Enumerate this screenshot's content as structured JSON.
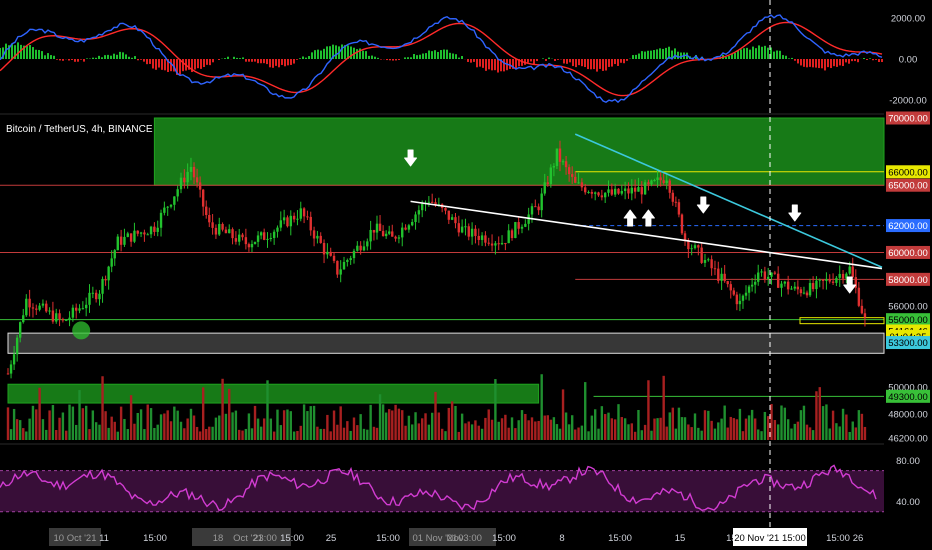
{
  "symbol_title": "Bitcoin / TetherUS, 4h, BINANCE",
  "colors": {
    "bg": "#000000",
    "up": "#26a69a",
    "up_bright": "#22c32e",
    "down": "#e03030",
    "zone_green": "#1fa31f",
    "zone_gray": "#9e9e9e",
    "rsi": "#d23cd2",
    "macd": "#2f64ff",
    "signal": "#ff2a2a",
    "trend_white": "#ffffff",
    "trend_cyan": "#3cc8dc",
    "level_yellow": "#e8e800",
    "level_red": "#c23b3b",
    "level_blue": "#2a6cff",
    "level_green": "#38c038",
    "crosshair": "#ffffff"
  },
  "price_axis": {
    "labels": [
      {
        "text": "70000.00",
        "value": 70000,
        "style": "red"
      },
      {
        "text": "66000.00",
        "value": 66000,
        "style": "yellow"
      },
      {
        "text": "65000.00",
        "value": 65000,
        "style": "red"
      },
      {
        "text": "62000.00",
        "value": 62000,
        "style": "blue"
      },
      {
        "text": "60000.00",
        "value": 60000,
        "style": "red"
      },
      {
        "text": "58000.00",
        "value": 58000,
        "style": "red"
      },
      {
        "text": "56000.00",
        "value": 56000,
        "style": "plain"
      },
      {
        "text": "55000.00",
        "value": 55000,
        "style": "green"
      },
      {
        "text": "54161.46",
        "value": 54161.46,
        "style": "current"
      },
      {
        "text": "01:04:35",
        "value": 53750,
        "style": "timer"
      },
      {
        "text": "53300.00",
        "value": 53300,
        "style": "cyan"
      },
      {
        "text": "50000.00",
        "value": 50000,
        "style": "plain"
      },
      {
        "text": "49300.00",
        "value": 49300,
        "style": "green"
      },
      {
        "text": "48000.00",
        "value": 48000,
        "style": "plain"
      },
      {
        "text": "46200.00",
        "value": 46200,
        "style": "plain"
      }
    ]
  },
  "macd_axis": {
    "labels": [
      "2000.00",
      "0.00",
      "-2000.00"
    ]
  },
  "rsi_axis": {
    "labels": [
      "80.00",
      "40.00"
    ]
  },
  "time_axis": {
    "labels": [
      "10 Oct '21",
      "11",
      "15:00",
      "18",
      "Oct '21",
      "23:00",
      "15:00",
      "25",
      "15:00",
      "01 Nov '21",
      "Nov",
      "03:00",
      "15:00",
      "8",
      "15:00",
      "15",
      "15:00",
      "22",
      "15:00",
      "26"
    ],
    "highlight": "20 Nov '21  15:00"
  },
  "chart_data": {
    "type": "candlestick",
    "title": "Bitcoin / TetherUS, 4h, BINANCE",
    "symbol": "BTC/USDT",
    "timeframe": "4h",
    "exchange": "BINANCE",
    "ylim": [
      46200,
      70000
    ],
    "x_range": [
      "10 Oct '21",
      "26 Nov '21"
    ],
    "current_price": 54161.46,
    "countdown": "01:04:35",
    "close_path": [
      {
        "x": "10 Oct '21",
        "close": 51000
      },
      {
        "x": "11 Oct '21",
        "close": 56500
      },
      {
        "x": "13 Oct '21",
        "close": 54800
      },
      {
        "x": "15 Oct '21",
        "close": 57200
      },
      {
        "x": "16 Oct '21",
        "close": 60800
      },
      {
        "x": "18 Oct '21",
        "close": 61900
      },
      {
        "x": "20 Oct '21",
        "close": 66400
      },
      {
        "x": "21 Oct '21",
        "close": 62000
      },
      {
        "x": "23 Oct '21",
        "close": 60700
      },
      {
        "x": "24 Oct '21",
        "close": 61200
      },
      {
        "x": "26 Oct '21",
        "close": 63000
      },
      {
        "x": "28 Oct '21",
        "close": 58600
      },
      {
        "x": "30 Oct '21",
        "close": 61800
      },
      {
        "x": "31 Oct '21",
        "close": 61000
      },
      {
        "x": "02 Nov '21",
        "close": 64000
      },
      {
        "x": "04 Nov '21",
        "close": 61500
      },
      {
        "x": "06 Nov '21",
        "close": 60800
      },
      {
        "x": "08 Nov '21",
        "close": 63500
      },
      {
        "x": "09 Nov '21",
        "close": 67300
      },
      {
        "x": "10 Nov '21",
        "close": 65000
      },
      {
        "x": "12 Nov '21",
        "close": 64300
      },
      {
        "x": "14 Nov '21",
        "close": 64800
      },
      {
        "x": "15 Nov '21",
        "close": 65700
      },
      {
        "x": "16 Nov '21",
        "close": 61000
      },
      {
        "x": "18 Nov '21",
        "close": 58000
      },
      {
        "x": "19 Nov '21",
        "close": 56200
      },
      {
        "x": "20 Nov '21",
        "close": 58600
      },
      {
        "x": "22 Nov '21",
        "close": 57200
      },
      {
        "x": "23 Nov '21",
        "close": 57300
      },
      {
        "x": "25 Nov '21",
        "close": 58800
      },
      {
        "x": "26 Nov '21",
        "close": 54161.46
      }
    ],
    "levels": [
      {
        "price": 66000,
        "color": "yellow",
        "from": "10 Nov '21",
        "to": "26 Nov '21"
      },
      {
        "price": 65000,
        "color": "red",
        "from": "10 Oct '21",
        "to": "26 Nov '21"
      },
      {
        "price": 62000,
        "color": "blue",
        "from": "10 Nov '21",
        "to": "26 Nov '21"
      },
      {
        "price": 60000,
        "color": "red",
        "from": "10 Oct '21",
        "to": "26 Nov '21"
      },
      {
        "price": 58000,
        "color": "red",
        "from": "10 Nov '21",
        "to": "26 Nov '21"
      },
      {
        "price": 55000,
        "color": "green",
        "from": "10 Oct '21",
        "to": "26 Nov '21"
      },
      {
        "price": 49300,
        "color": "green",
        "from": "11 Nov '21",
        "to": "26 Nov '21"
      }
    ],
    "zones": [
      {
        "type": "resistance",
        "color": "green",
        "from_price": 65000,
        "to_price": 70000,
        "from": "18 Oct '21",
        "to": "26 Nov '21"
      },
      {
        "type": "support",
        "color": "gray",
        "from_price": 52500,
        "to_price": 54000,
        "from": "10 Oct '21",
        "to": "26 Nov '21"
      },
      {
        "type": "support",
        "color": "green",
        "from_price": 48800,
        "to_price": 50200,
        "from": "10 Oct '21",
        "to": "08 Nov '21"
      }
    ],
    "trendlines": [
      {
        "color": "white",
        "from": {
          "x": "01 Nov '21",
          "price": 63800
        },
        "to": {
          "x": "26 Nov '21",
          "price": 58800
        }
      },
      {
        "color": "cyan",
        "from": {
          "x": "10 Nov '21",
          "price": 68800
        },
        "to": {
          "x": "26 Nov '21",
          "price": 58900
        }
      }
    ],
    "annotations": [
      {
        "type": "arrow-down",
        "x": "01 Nov '21"
      },
      {
        "type": "arrow-up",
        "x": "13 Nov '21"
      },
      {
        "type": "arrow-up",
        "x": "14 Nov '21"
      },
      {
        "type": "arrow-down",
        "x": "17 Nov '21"
      },
      {
        "type": "arrow-down",
        "x": "22 Nov '21"
      },
      {
        "type": "arrow-down",
        "x": "25 Nov '21"
      },
      {
        "type": "circle",
        "x": "14 Oct '21",
        "price": 54200
      }
    ],
    "macd": {
      "ylim": [
        -2500,
        2500
      ],
      "lines": [
        "macd",
        "signal"
      ],
      "histogram": true
    },
    "rsi": {
      "ylim": [
        20,
        90
      ],
      "band": [
        30,
        70
      ]
    },
    "volume": {
      "shown": true
    },
    "grid": false,
    "legend": "none"
  }
}
